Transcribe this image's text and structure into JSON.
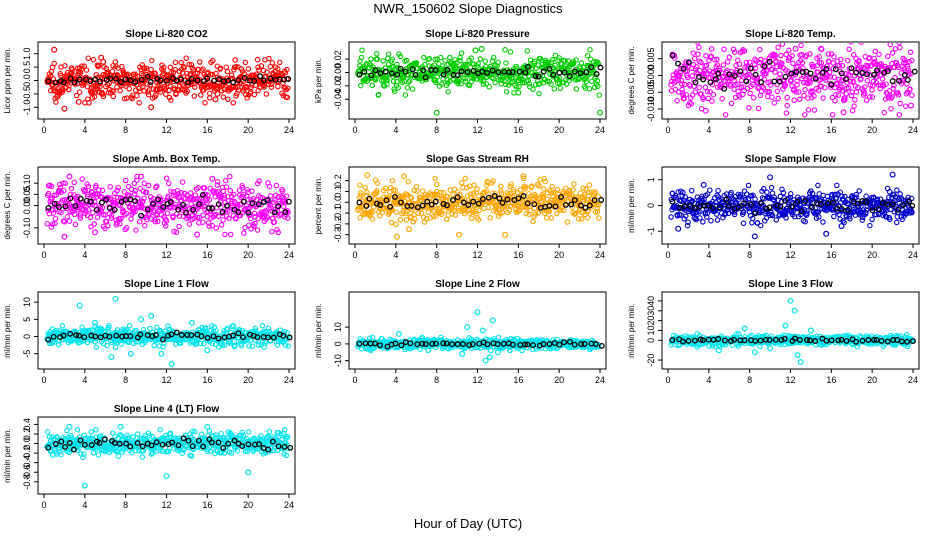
{
  "title": "NWR_150602  Slope Diagnostics",
  "xlabel": "Hour of Day (UTC)",
  "chart_data": [
    {
      "type": "scatter",
      "title": "Slope Li-820 CO2",
      "ylabel": "Licor ppm per min.",
      "color": "#ff0000",
      "xlim": [
        0,
        24
      ],
      "xticks": [
        0,
        4,
        8,
        12,
        16,
        20,
        24
      ],
      "ylim": [
        -1.25,
        1.25
      ],
      "yticks": [
        -1.0,
        -0.5,
        0.0,
        0.5,
        1.0
      ],
      "ytick_labels": [
        "-1.0",
        "-0.5",
        "0.0",
        "0.5",
        "1.0"
      ],
      "spread": 0.32,
      "hourly_spread": 0.06,
      "spikes": [
        [
          1.0,
          1.15
        ],
        [
          5.6,
          0.85
        ],
        [
          5.8,
          0.7
        ],
        [
          2.0,
          -1.05
        ],
        [
          10.5,
          -1.0
        ],
        [
          3.4,
          -0.8
        ],
        [
          16.8,
          -0.7
        ],
        [
          17.0,
          -0.5
        ],
        [
          1.3,
          -0.6
        ],
        [
          9.8,
          0.45
        ]
      ]
    },
    {
      "type": "scatter",
      "title": "Slope Li-820 Pressure",
      "ylabel": "kPa per min.",
      "color": "#00cc00",
      "xlim": [
        0,
        24
      ],
      "xticks": [
        0,
        4,
        8,
        12,
        16,
        20,
        24
      ],
      "ylim": [
        -0.062,
        0.038
      ],
      "yticks": [
        -0.04,
        -0.02,
        0.0,
        0.02
      ],
      "ytick_labels": [
        "-0.04",
        "-0.02",
        "0.00",
        "0.02"
      ],
      "spread": 0.013,
      "hourly_spread": 0.004,
      "spikes": [
        [
          8.0,
          -0.06
        ],
        [
          16.0,
          -0.03
        ],
        [
          24.0,
          -0.06
        ],
        [
          11.8,
          0.033
        ],
        [
          12.4,
          0.035
        ]
      ]
    },
    {
      "type": "scatter",
      "title": "Slope Li-820 Temp.",
      "ylabel": "degrees C per min.",
      "color": "#ff00ff",
      "xlim": [
        0,
        24
      ],
      "xticks": [
        0,
        4,
        8,
        12,
        16,
        20,
        24
      ],
      "ylim": [
        -0.0115,
        0.0085
      ],
      "yticks": [
        -0.01,
        -0.005,
        0.0,
        0.005
      ],
      "ytick_labels": [
        "-0.010",
        "-0.005",
        "0.000",
        "0.005"
      ],
      "spread": 0.0045,
      "hourly_spread": 0.002,
      "spikes": [
        [
          3.7,
          -0.0105
        ],
        [
          17.2,
          -0.011
        ],
        [
          15.0,
          0.008
        ],
        [
          23.8,
          -0.009
        ],
        [
          12.5,
          0.008
        ]
      ]
    },
    {
      "type": "scatter",
      "title": "Slope Amb. Box Temp.",
      "ylabel": "degrees C per min.",
      "color": "#ff00ff",
      "xlim": [
        0,
        24
      ],
      "xticks": [
        0,
        4,
        8,
        12,
        16,
        20,
        24
      ],
      "ylim": [
        -0.15,
        0.15
      ],
      "yticks": [
        -0.1,
        0.0,
        0.05,
        0.1
      ],
      "ytick_labels": [
        "-0.10",
        "0.00",
        "0.05",
        "0.10"
      ],
      "spread": 0.05,
      "hourly_spread": 0.02,
      "spikes": [
        [
          2.0,
          -0.14
        ],
        [
          2.5,
          0.13
        ],
        [
          5.0,
          -0.12
        ],
        [
          15.0,
          -0.13
        ],
        [
          9.5,
          0.13
        ],
        [
          16.5,
          0.12
        ]
      ]
    },
    {
      "type": "scatter",
      "title": "Slope Gas Stream RH",
      "ylabel": "percent per min.",
      "color": "#ffa500",
      "xlim": [
        0,
        24
      ],
      "xticks": [
        0,
        4,
        8,
        12,
        16,
        20,
        24
      ],
      "ylim": [
        -0.34,
        0.28
      ],
      "yticks": [
        -0.3,
        -0.2,
        -0.1,
        0.0,
        0.1,
        0.2
      ],
      "ytick_labels": [
        "-0.3",
        "-0.2",
        "-0.1",
        "0.0",
        "0.1",
        "0.2"
      ],
      "spread": 0.085,
      "hourly_spread": 0.03,
      "spikes": [
        [
          1.2,
          0.25
        ],
        [
          4.1,
          -0.32
        ],
        [
          4.8,
          0.24
        ],
        [
          5.3,
          -0.25
        ],
        [
          10.2,
          -0.3
        ],
        [
          14.7,
          -0.3
        ],
        [
          16.5,
          0.24
        ]
      ]
    },
    {
      "type": "scatter",
      "title": "Slope Sample Flow",
      "ylabel": "ml/min per min.",
      "color": "#0000cc",
      "xlim": [
        0,
        24
      ],
      "xticks": [
        0,
        4,
        8,
        12,
        16,
        20,
        24
      ],
      "ylim": [
        -1.3,
        1.3
      ],
      "yticks": [
        -1,
        0,
        1
      ],
      "ytick_labels": [
        "-1",
        "0",
        "1"
      ],
      "spread": 0.3,
      "hourly_spread": 0.12,
      "spikes": [
        [
          1.0,
          -0.9
        ],
        [
          8.5,
          -1.2
        ],
        [
          10.0,
          1.1
        ],
        [
          15.5,
          -1.1
        ],
        [
          22.0,
          1.2
        ],
        [
          3.5,
          0.8
        ],
        [
          17.0,
          -0.8
        ]
      ]
    },
    {
      "type": "scatter",
      "title": "Slope Line 1 Flow",
      "ylabel": "ml/min per min.",
      "color": "#00e5ee",
      "xlim": [
        0,
        24
      ],
      "xticks": [
        0,
        4,
        8,
        12,
        16,
        20,
        24
      ],
      "ylim": [
        -8,
        11.5
      ],
      "yticks": [
        -5,
        0,
        5,
        10
      ],
      "ytick_labels": [
        "-5",
        "0",
        "5",
        "10"
      ],
      "spread": 1.2,
      "hourly_spread": 0.4,
      "spikes": [
        [
          3.5,
          9
        ],
        [
          7.0,
          11
        ],
        [
          6.6,
          -6
        ],
        [
          8.5,
          -5
        ],
        [
          12.5,
          -8
        ],
        [
          9.5,
          5
        ],
        [
          10.5,
          6
        ],
        [
          11.5,
          -5
        ],
        [
          5.0,
          4
        ],
        [
          16.0,
          -4
        ],
        [
          14.5,
          4
        ]
      ]
    },
    {
      "type": "scatter",
      "title": "Slope Line 2 Flow",
      "ylabel": "ml/min per min.",
      "color": "#00e5ee",
      "xlim": [
        0,
        24
      ],
      "xticks": [
        0,
        4,
        8,
        12,
        16,
        20,
        24
      ],
      "ylim": [
        -12,
        28
      ],
      "yticks": [
        -10,
        0,
        10
      ],
      "ytick_labels": [
        "-10",
        "0",
        "10"
      ],
      "spread": 1.5,
      "hourly_spread": 0.5,
      "spikes": [
        [
          11.0,
          10
        ],
        [
          12.0,
          19
        ],
        [
          12.5,
          8
        ],
        [
          12.8,
          -10
        ],
        [
          13.5,
          14
        ],
        [
          13.2,
          -8
        ],
        [
          10.5,
          -6
        ],
        [
          4.3,
          6
        ],
        [
          14.0,
          -5
        ]
      ]
    },
    {
      "type": "scatter",
      "title": "Slope Line 3 Flow",
      "ylabel": "ml/min per min.",
      "color": "#00e5ee",
      "xlim": [
        0,
        24
      ],
      "xticks": [
        0,
        4,
        8,
        12,
        16,
        20,
        24
      ],
      "ylim": [
        -24,
        44
      ],
      "yticks": [
        -20,
        0,
        10,
        20,
        30,
        40
      ],
      "ytick_labels": [
        "-20",
        "0",
        "10",
        "20",
        "30",
        "40"
      ],
      "spread": 2.5,
      "hourly_spread": 0.8,
      "spikes": [
        [
          12.0,
          40
        ],
        [
          12.4,
          30
        ],
        [
          13.0,
          -22
        ],
        [
          12.7,
          -15
        ],
        [
          11.5,
          15
        ],
        [
          7.5,
          12
        ],
        [
          5.0,
          -10
        ],
        [
          10.0,
          -8
        ],
        [
          14.0,
          10
        ],
        [
          8.5,
          -12
        ]
      ]
    },
    {
      "type": "scatter",
      "title": "Slope Line 4 (LT) Flow",
      "ylabel": "ml/min per min.",
      "color": "#00e5ee",
      "xlim": [
        0,
        24
      ],
      "xticks": [
        0,
        4,
        8,
        12,
        16,
        20,
        24
      ],
      "ylim": [
        -0.95,
        0.45
      ],
      "yticks": [
        -0.8,
        -0.6,
        -0.4,
        -0.2,
        0.0,
        0.2,
        0.4
      ],
      "ytick_labels": [
        "-0.8",
        "-0.6",
        "-0.4",
        "-0.2",
        "0.0",
        "0.2",
        "0.4"
      ],
      "spread": 0.11,
      "hourly_spread": 0.06,
      "spikes": [
        [
          4.0,
          -0.88
        ],
        [
          12.0,
          -0.68
        ],
        [
          20.0,
          -0.6
        ],
        [
          2.5,
          0.35
        ],
        [
          7.5,
          0.35
        ],
        [
          16.0,
          0.35
        ]
      ]
    }
  ]
}
